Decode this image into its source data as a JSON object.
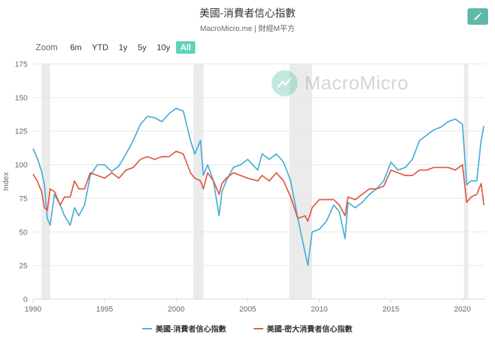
{
  "title": "美國-消費者信心指數",
  "subtitle": "MacroMicro.me | 財經M平方",
  "watermark": "MacroMicro",
  "zoom": {
    "label": "Zoom",
    "buttons": [
      "6m",
      "YTD",
      "1y",
      "5y",
      "10y",
      "All"
    ],
    "active": "All"
  },
  "colors": {
    "series1": "#45aed6",
    "series2": "#e0573f",
    "recession": "#ebebeb",
    "accent": "#5ed3b6"
  },
  "chart_data": {
    "type": "line",
    "ylabel": "Index",
    "ylim": [
      0,
      175
    ],
    "yticks": [
      0,
      25,
      50,
      75,
      100,
      125,
      150,
      175
    ],
    "xlim": [
      1990,
      2021.6
    ],
    "xticks": [
      1990,
      1995,
      2000,
      2005,
      2010,
      2015,
      2020
    ],
    "recessions": [
      [
        1990.6,
        1991.2
      ],
      [
        2001.2,
        2001.9
      ],
      [
        2007.9,
        2009.5
      ],
      [
        2020.1,
        2020.4
      ]
    ],
    "legend_position": "bottom",
    "series": [
      {
        "name": "美國-消費者信心指數",
        "x": [
          1990.0,
          1990.3,
          1990.6,
          1990.8,
          1991.0,
          1991.2,
          1991.5,
          1991.9,
          1992.2,
          1992.6,
          1992.9,
          1993.2,
          1993.6,
          1994.0,
          1994.5,
          1995.0,
          1995.5,
          1996.0,
          1996.5,
          1997.0,
          1997.5,
          1998.0,
          1998.5,
          1999.0,
          1999.5,
          2000.0,
          2000.5,
          2001.0,
          2001.3,
          2001.7,
          2001.9,
          2002.2,
          2002.6,
          2003.0,
          2003.2,
          2003.5,
          2004.0,
          2004.5,
          2005.0,
          2005.7,
          2006.0,
          2006.5,
          2007.0,
          2007.5,
          2008.0,
          2008.5,
          2009.0,
          2009.2,
          2009.5,
          2010.0,
          2010.5,
          2011.0,
          2011.4,
          2011.8,
          2012.0,
          2012.5,
          2013.0,
          2013.5,
          2014.0,
          2014.5,
          2015.0,
          2015.5,
          2016.0,
          2016.5,
          2017.0,
          2017.5,
          2018.0,
          2018.5,
          2019.0,
          2019.5,
          2020.0,
          2020.3,
          2020.6,
          2021.0,
          2021.3,
          2021.5
        ],
        "values": [
          112,
          105,
          95,
          85,
          60,
          55,
          78,
          70,
          62,
          55,
          68,
          62,
          70,
          92,
          100,
          100,
          95,
          99,
          108,
          118,
          130,
          136,
          135,
          132,
          138,
          142,
          140,
          118,
          108,
          118,
          92,
          100,
          88,
          62,
          80,
          88,
          98,
          100,
          104,
          96,
          108,
          104,
          108,
          102,
          88,
          60,
          35,
          25,
          50,
          52,
          58,
          70,
          65,
          45,
          72,
          68,
          72,
          78,
          82,
          88,
          102,
          96,
          98,
          104,
          118,
          122,
          126,
          128,
          132,
          134,
          130,
          85,
          88,
          88,
          118,
          129
        ]
      },
      {
        "name": "美國-密大消費者信心指數",
        "x": [
          1990.0,
          1990.3,
          1990.6,
          1990.8,
          1991.0,
          1991.2,
          1991.5,
          1991.9,
          1992.2,
          1992.6,
          1992.9,
          1993.2,
          1993.6,
          1994.0,
          1994.5,
          1995.0,
          1995.5,
          1996.0,
          1996.5,
          1997.0,
          1997.5,
          1998.0,
          1998.5,
          1999.0,
          1999.5,
          2000.0,
          2000.5,
          2001.0,
          2001.3,
          2001.7,
          2001.9,
          2002.2,
          2002.6,
          2003.0,
          2003.2,
          2003.5,
          2004.0,
          2004.5,
          2005.0,
          2005.7,
          2006.0,
          2006.5,
          2007.0,
          2007.5,
          2008.0,
          2008.5,
          2009.0,
          2009.2,
          2009.5,
          2010.0,
          2010.5,
          2011.0,
          2011.4,
          2011.8,
          2012.0,
          2012.5,
          2013.0,
          2013.5,
          2014.0,
          2014.5,
          2015.0,
          2015.5,
          2016.0,
          2016.5,
          2017.0,
          2017.5,
          2018.0,
          2018.5,
          2019.0,
          2019.5,
          2020.0,
          2020.3,
          2020.6,
          2021.0,
          2021.3,
          2021.5
        ],
        "values": [
          93,
          88,
          80,
          68,
          66,
          82,
          80,
          70,
          76,
          76,
          88,
          82,
          82,
          94,
          92,
          90,
          94,
          90,
          96,
          98,
          104,
          106,
          104,
          106,
          106,
          110,
          108,
          94,
          90,
          88,
          82,
          94,
          88,
          78,
          86,
          90,
          94,
          92,
          90,
          88,
          92,
          88,
          94,
          88,
          76,
          60,
          62,
          58,
          68,
          74,
          74,
          74,
          70,
          62,
          76,
          74,
          78,
          82,
          82,
          84,
          96,
          94,
          92,
          92,
          96,
          96,
          98,
          98,
          98,
          96,
          100,
          72,
          76,
          78,
          86,
          70
        ]
      }
    ]
  }
}
